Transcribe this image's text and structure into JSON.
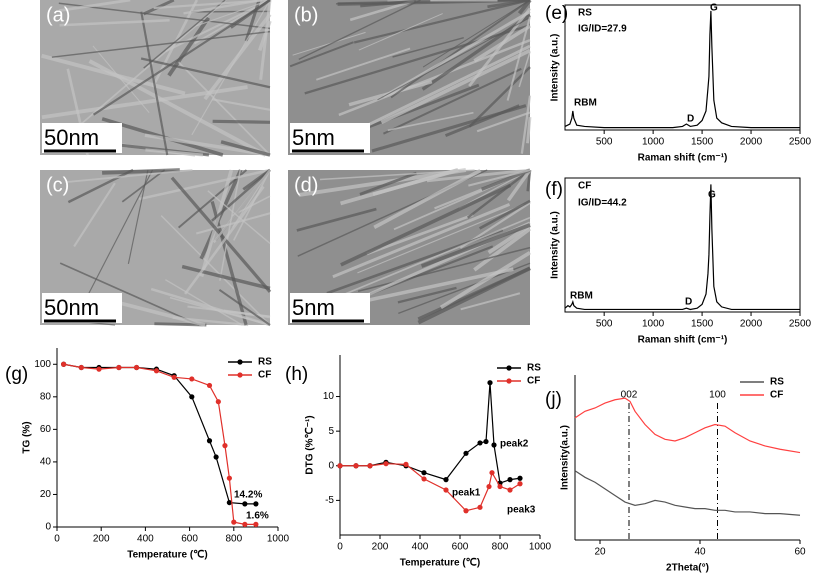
{
  "images": [
    {
      "label": "(a)",
      "scale_bar": "50nm"
    },
    {
      "label": "(b)",
      "scale_bar": "5nm"
    },
    {
      "label": "(c)",
      "scale_bar": "50nm"
    },
    {
      "label": "(d)",
      "scale_bar": "5nm"
    }
  ],
  "chart_data": [
    {
      "type": "line",
      "panel": "(e)",
      "xlabel": "Raman shift  (cm⁻¹)",
      "ylabel": "Intensity (a.u.)",
      "xlim": [
        100,
        2500
      ],
      "ylim": [
        0,
        105
      ],
      "xticks": [
        500,
        1000,
        1500,
        2000,
        2500
      ],
      "frame": true,
      "annotations": [
        "RS",
        "IG/ID=27.9",
        "RBM",
        "D",
        "G"
      ],
      "series": [
        {
          "color": "#000000",
          "x": [
            100,
            150,
            170,
            180,
            190,
            220,
            300,
            500,
            800,
            1000,
            1200,
            1300,
            1340,
            1380,
            1450,
            1500,
            1540,
            1560,
            1570,
            1580,
            1590,
            1600,
            1620,
            1650,
            1700,
            1800,
            2000,
            2200,
            2500
          ],
          "values": [
            3,
            5,
            10,
            16,
            10,
            4,
            3,
            2,
            2,
            2,
            2,
            3,
            5,
            3,
            4,
            8,
            16,
            35,
            45,
            80,
            100,
            70,
            25,
            10,
            6,
            3,
            2,
            2,
            2
          ]
        }
      ]
    },
    {
      "type": "line",
      "panel": "(f)",
      "xlabel": "Raman shift  (cm⁻¹)",
      "ylabel": "Intensity (a.u.)",
      "xlim": [
        100,
        2500
      ],
      "ylim": [
        0,
        105
      ],
      "xticks": [
        500,
        1000,
        1500,
        2000,
        2500
      ],
      "frame": true,
      "annotations": [
        "CF",
        "IG/ID=44.2",
        "RBM",
        "D",
        "G"
      ],
      "series": [
        {
          "color": "#000000",
          "x": [
            100,
            130,
            150,
            170,
            180,
            190,
            220,
            300,
            500,
            800,
            1000,
            1200,
            1300,
            1340,
            1380,
            1450,
            1500,
            1540,
            1560,
            1570,
            1580,
            1590,
            1600,
            1620,
            1650,
            1700,
            1800,
            2000,
            2200,
            2500
          ],
          "values": [
            3,
            5,
            4,
            6,
            8,
            5,
            3,
            2,
            2,
            2,
            2,
            2,
            2,
            3,
            2,
            3,
            6,
            14,
            30,
            45,
            75,
            100,
            65,
            20,
            8,
            4,
            2,
            2,
            2,
            2
          ]
        }
      ]
    },
    {
      "type": "line",
      "panel": "(g)",
      "xlabel": "Temperature (℃)",
      "ylabel": "TG  (%)",
      "xlim": [
        0,
        1000
      ],
      "ylim": [
        0,
        110
      ],
      "xticks": [
        0,
        200,
        400,
        600,
        800,
        1000
      ],
      "yticks": [
        0,
        20,
        40,
        60,
        80,
        100
      ],
      "markers": true,
      "annotations": [
        "14.2%",
        "1.6%"
      ],
      "series": [
        {
          "name": "RS",
          "color": "#000000",
          "x": [
            30,
            110,
            190,
            280,
            360,
            450,
            530,
            610,
            690,
            720,
            780,
            850,
            900
          ],
          "values": [
            100,
            98,
            98,
            98,
            98,
            97,
            93,
            80,
            53,
            43,
            15,
            14.2,
            14.2
          ]
        },
        {
          "name": "CF",
          "color": "#e0302a",
          "x": [
            30,
            110,
            190,
            280,
            360,
            450,
            530,
            610,
            690,
            730,
            760,
            780,
            800,
            850,
            900
          ],
          "values": [
            100,
            98,
            97,
            98,
            98,
            96,
            92,
            91,
            87,
            77,
            50,
            30,
            3,
            1.6,
            1.6
          ]
        }
      ]
    },
    {
      "type": "line",
      "panel": "(h)",
      "xlabel": "Temperature (℃)",
      "ylabel": "DTG (%℃⁻¹)",
      "xlim": [
        0,
        1000
      ],
      "ylim": [
        -10,
        16
      ],
      "xticks": [
        0,
        200,
        400,
        600,
        800,
        1000
      ],
      "yticks": [
        -5,
        0,
        5,
        10
      ],
      "markers": true,
      "annotations": [
        "peak1",
        "peak2",
        "peak3"
      ],
      "series": [
        {
          "name": "RS",
          "color": "#000000",
          "x": [
            0,
            80,
            150,
            230,
            330,
            420,
            530,
            630,
            700,
            730,
            750,
            770,
            800,
            850,
            900
          ],
          "values": [
            0,
            0,
            0,
            0.5,
            0,
            -1,
            -2,
            1.8,
            3.3,
            3.5,
            12,
            3,
            -2.5,
            -2,
            -1.8
          ]
        },
        {
          "name": "CF",
          "color": "#e0302a",
          "x": [
            0,
            80,
            150,
            230,
            330,
            420,
            530,
            630,
            700,
            745,
            760,
            800,
            850,
            900
          ],
          "values": [
            0,
            0,
            0,
            0.3,
            0.2,
            -1.9,
            -3.5,
            -6.5,
            -6,
            -3,
            -1,
            -3,
            -3.5,
            -2.6
          ]
        }
      ]
    },
    {
      "type": "line",
      "panel": "(j)",
      "xlabel": "2Theta(°)",
      "ylabel": "Intensity(a.u.)",
      "xlim": [
        15,
        60
      ],
      "ylim": [
        0,
        100
      ],
      "xticks": [
        20,
        40,
        60
      ],
      "reference_lines": [
        {
          "x": 25.8,
          "label": "002"
        },
        {
          "x": 43.5,
          "label": "100"
        }
      ],
      "series": [
        {
          "name": "RS",
          "color": "#555555",
          "x": [
            15,
            17,
            19,
            21,
            23,
            25,
            27,
            29,
            31,
            33,
            35,
            37,
            39,
            41,
            43,
            45,
            47,
            50,
            53,
            56,
            60
          ],
          "values": [
            42,
            38,
            35,
            31,
            27,
            23,
            21,
            22,
            24,
            23,
            21,
            20,
            19,
            19,
            18,
            18,
            17,
            17,
            16,
            16,
            15
          ]
        },
        {
          "name": "CF",
          "color": "#ff4040",
          "x": [
            15,
            17,
            19,
            21,
            23,
            25,
            26,
            27,
            29,
            31,
            33,
            35,
            37,
            39,
            41,
            43,
            45,
            47,
            50,
            53,
            56,
            60
          ],
          "values": [
            74,
            78,
            80,
            83,
            85,
            86,
            84,
            78,
            70,
            64,
            61,
            60,
            62,
            65,
            68,
            70,
            69,
            65,
            60,
            57,
            55,
            53
          ]
        }
      ]
    }
  ]
}
